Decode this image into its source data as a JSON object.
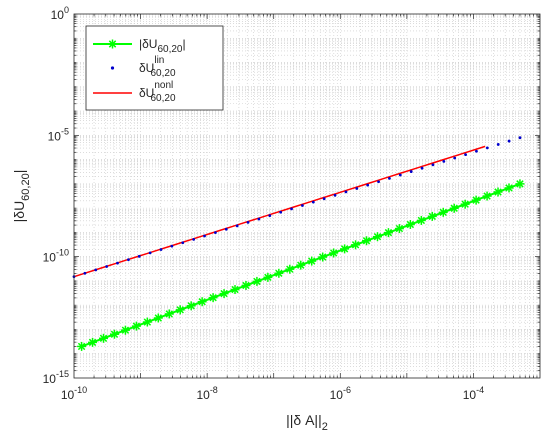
{
  "chart_data": {
    "type": "line",
    "x_scale": "log",
    "y_scale": "log",
    "xlim": [
      1e-10,
      0.001
    ],
    "ylim": [
      1e-15,
      1
    ],
    "grid": true,
    "minor_grid": true,
    "legend_position": "top-left",
    "xlabel": {
      "prefix": "||δ A||",
      "sub": "2"
    },
    "ylabel": {
      "prefix": "|δU",
      "sub": "60,20",
      "suffix": "|"
    },
    "x_ticks": [
      {
        "value": 1e-10,
        "base": "10",
        "exp": "-10"
      },
      {
        "value": 1e-08,
        "base": "10",
        "exp": "-8"
      },
      {
        "value": 1e-06,
        "base": "10",
        "exp": "-6"
      },
      {
        "value": 0.0001,
        "base": "10",
        "exp": "-4"
      }
    ],
    "y_ticks": [
      {
        "value": 1e-15,
        "base": "10",
        "exp": "-15"
      },
      {
        "value": 1e-10,
        "base": "10",
        "exp": "-10"
      },
      {
        "value": 1e-05,
        "base": "10",
        "exp": "-5"
      },
      {
        "value": 1,
        "base": "10",
        "exp": "0"
      }
    ],
    "series": [
      {
        "name": {
          "prefix": "|δU",
          "sub": "60,20",
          "suffix": "|"
        },
        "color": "#00ff00",
        "line": true,
        "marker": "asterisk",
        "x_range": [
          1.3e-10,
          0.0005
        ],
        "y_range": [
          2e-14,
          1e-07
        ],
        "n_points": 41
      },
      {
        "name": {
          "prefix": "δU",
          "sub": "60,20",
          "sup": "lin"
        },
        "color": "#0000cc",
        "line": false,
        "marker": "dot",
        "x_range": [
          1e-10,
          0.0005
        ],
        "y_range": [
          1.5e-11,
          8e-06
        ],
        "n_points": 42
      },
      {
        "name": {
          "prefix": "δU",
          "sub": "60,20",
          "sup": "nonl"
        },
        "color": "#ff0000",
        "line": true,
        "marker": "none",
        "x_range": [
          1e-10,
          0.00015
        ],
        "y_range": [
          1.5e-11,
          3.5e-06
        ],
        "n_points": 40
      }
    ]
  }
}
